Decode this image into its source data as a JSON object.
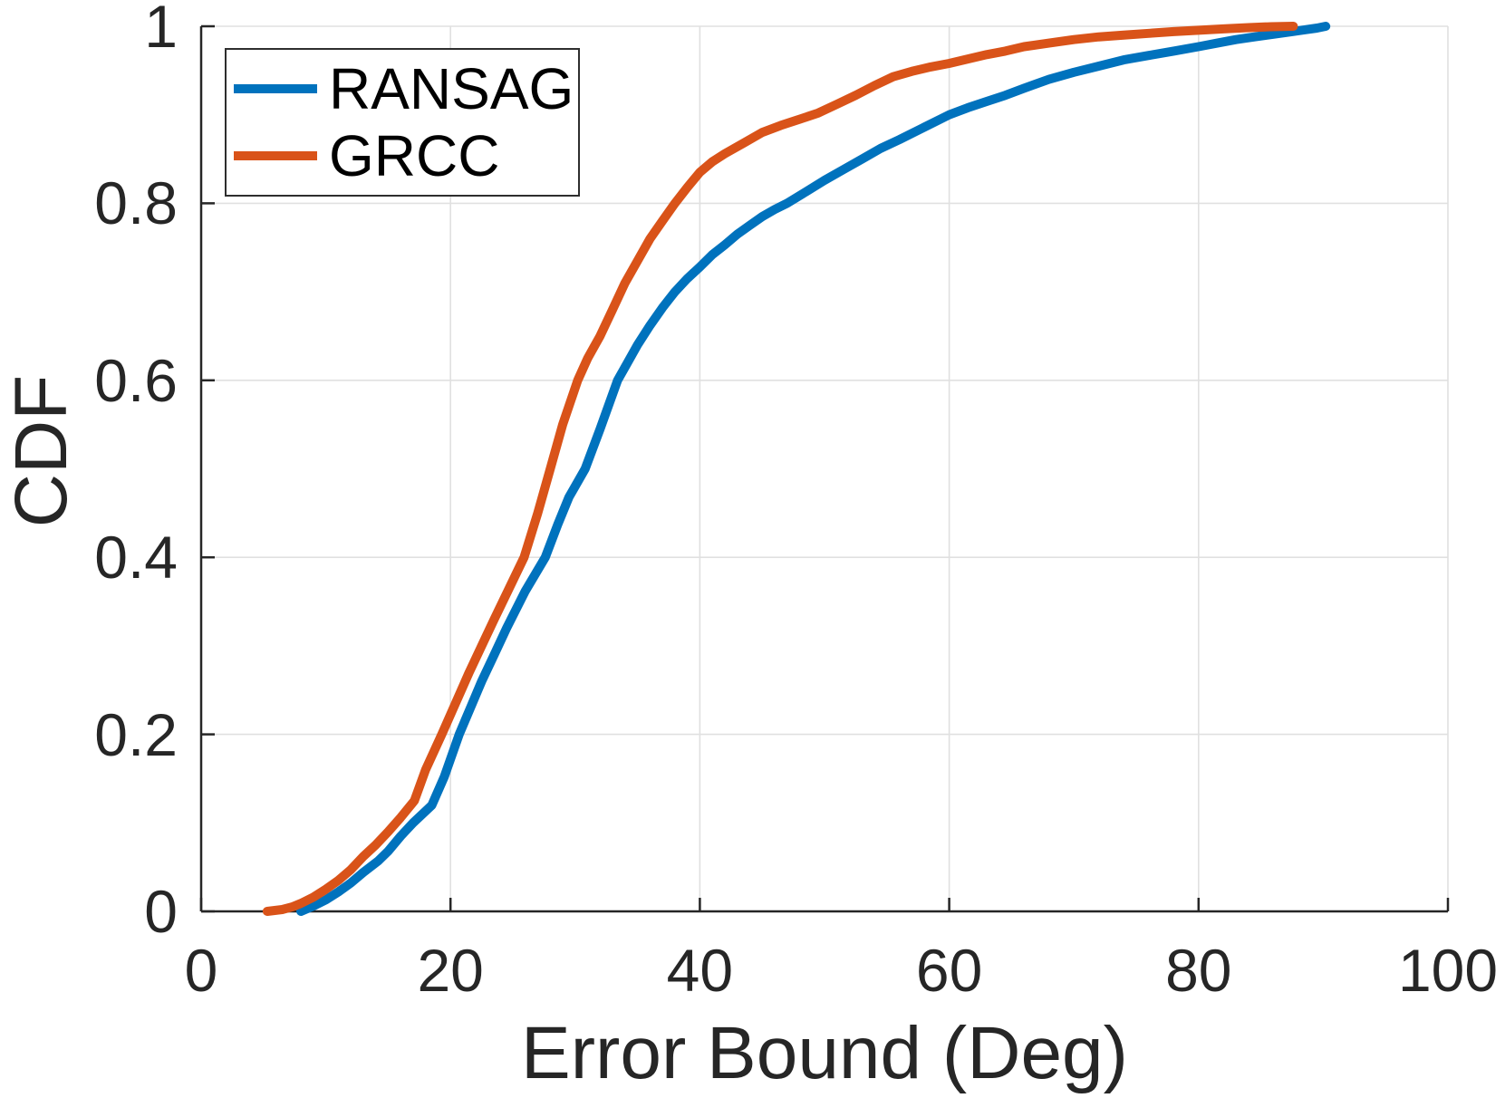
{
  "chart_data": {
    "type": "line",
    "title": "",
    "xlabel": "Error Bound (Deg)",
    "ylabel": "CDF",
    "xlim": [
      0,
      100
    ],
    "ylim": [
      0,
      1
    ],
    "xticks": [
      0,
      20,
      40,
      60,
      80,
      100
    ],
    "xtick_labels": [
      "0",
      "20",
      "40",
      "60",
      "80",
      "100"
    ],
    "yticks": [
      0,
      0.2,
      0.4,
      0.6,
      0.8,
      1
    ],
    "ytick_labels": [
      "0",
      "0.2",
      "0.4",
      "0.6",
      "0.8",
      "1"
    ],
    "grid": true,
    "legend_position": "top-left",
    "colors": {
      "grid": "#e0e0e0",
      "spine": "#262626",
      "tick_text": "#262626",
      "legend_border": "#2e2e2e",
      "series_blue": "#0072BD",
      "series_orange": "#D95319"
    },
    "series": [
      {
        "name": "RANSAG",
        "color": "#0072BD",
        "points": [
          [
            8,
            0
          ],
          [
            9,
            0.006
          ],
          [
            10,
            0.013
          ],
          [
            11,
            0.022
          ],
          [
            12,
            0.032
          ],
          [
            13,
            0.044
          ],
          [
            14.2,
            0.057
          ],
          [
            15,
            0.068
          ],
          [
            16,
            0.085
          ],
          [
            17,
            0.1
          ],
          [
            18.5,
            0.12
          ],
          [
            19.5,
            0.152
          ],
          [
            20.7,
            0.2
          ],
          [
            21.6,
            0.23
          ],
          [
            22.5,
            0.26
          ],
          [
            23.5,
            0.29
          ],
          [
            24.5,
            0.32
          ],
          [
            26,
            0.362
          ],
          [
            27.6,
            0.4
          ],
          [
            28.6,
            0.437
          ],
          [
            29.5,
            0.468
          ],
          [
            30.8,
            0.5
          ],
          [
            32,
            0.545
          ],
          [
            33.4,
            0.6
          ],
          [
            34.2,
            0.62
          ],
          [
            35,
            0.64
          ],
          [
            36,
            0.662
          ],
          [
            37,
            0.682
          ],
          [
            38,
            0.7
          ],
          [
            39,
            0.715
          ],
          [
            40,
            0.728
          ],
          [
            41,
            0.742
          ],
          [
            42,
            0.753
          ],
          [
            43,
            0.765
          ],
          [
            44,
            0.775
          ],
          [
            45,
            0.785
          ],
          [
            46,
            0.793
          ],
          [
            47,
            0.8
          ],
          [
            48.5,
            0.813
          ],
          [
            50,
            0.826
          ],
          [
            51.5,
            0.838
          ],
          [
            53,
            0.85
          ],
          [
            54.5,
            0.862
          ],
          [
            56,
            0.872
          ],
          [
            58,
            0.886
          ],
          [
            60,
            0.9
          ],
          [
            61.5,
            0.908
          ],
          [
            63,
            0.915
          ],
          [
            64.5,
            0.922
          ],
          [
            66,
            0.93
          ],
          [
            68,
            0.94
          ],
          [
            70,
            0.948
          ],
          [
            72,
            0.955
          ],
          [
            74,
            0.962
          ],
          [
            76,
            0.967
          ],
          [
            78,
            0.972
          ],
          [
            80,
            0.977
          ],
          [
            81.5,
            0.981
          ],
          [
            83,
            0.985
          ],
          [
            84.5,
            0.988
          ],
          [
            86,
            0.991
          ],
          [
            87.5,
            0.994
          ],
          [
            88.5,
            0.996
          ],
          [
            89.5,
            0.998
          ],
          [
            90.2,
            1
          ]
        ]
      },
      {
        "name": "GRCC",
        "color": "#D95319",
        "points": [
          [
            5.3,
            0
          ],
          [
            6.5,
            0.002
          ],
          [
            7.3,
            0.005
          ],
          [
            8,
            0.009
          ],
          [
            9,
            0.016
          ],
          [
            10,
            0.025
          ],
          [
            11,
            0.035
          ],
          [
            12,
            0.047
          ],
          [
            13,
            0.062
          ],
          [
            14,
            0.075
          ],
          [
            15,
            0.09
          ],
          [
            16,
            0.106
          ],
          [
            17.1,
            0.125
          ],
          [
            18,
            0.16
          ],
          [
            19.3,
            0.2
          ],
          [
            20.4,
            0.235
          ],
          [
            21.5,
            0.27
          ],
          [
            22.5,
            0.3
          ],
          [
            23.5,
            0.33
          ],
          [
            24.7,
            0.365
          ],
          [
            25.9,
            0.4
          ],
          [
            27,
            0.45
          ],
          [
            28,
            0.5
          ],
          [
            29,
            0.55
          ],
          [
            30.2,
            0.6
          ],
          [
            31,
            0.625
          ],
          [
            32,
            0.65
          ],
          [
            33,
            0.68
          ],
          [
            34,
            0.71
          ],
          [
            35,
            0.735
          ],
          [
            36,
            0.76
          ],
          [
            37,
            0.78
          ],
          [
            38,
            0.8
          ],
          [
            39,
            0.818
          ],
          [
            40,
            0.835
          ],
          [
            41,
            0.847
          ],
          [
            42,
            0.856
          ],
          [
            43.5,
            0.868
          ],
          [
            45,
            0.88
          ],
          [
            46.5,
            0.888
          ],
          [
            48,
            0.895
          ],
          [
            49.5,
            0.902
          ],
          [
            51,
            0.912
          ],
          [
            52.5,
            0.922
          ],
          [
            54,
            0.933
          ],
          [
            55.5,
            0.943
          ],
          [
            57,
            0.949
          ],
          [
            58.5,
            0.954
          ],
          [
            60,
            0.958
          ],
          [
            61.5,
            0.963
          ],
          [
            63,
            0.968
          ],
          [
            64.5,
            0.972
          ],
          [
            66,
            0.977
          ],
          [
            68,
            0.981
          ],
          [
            70,
            0.985
          ],
          [
            72,
            0.988
          ],
          [
            74,
            0.99
          ],
          [
            76,
            0.992
          ],
          [
            78,
            0.994
          ],
          [
            80,
            0.9955
          ],
          [
            82,
            0.997
          ],
          [
            84,
            0.9985
          ],
          [
            85.8,
            0.9995
          ],
          [
            87.6,
            1
          ]
        ]
      }
    ]
  }
}
